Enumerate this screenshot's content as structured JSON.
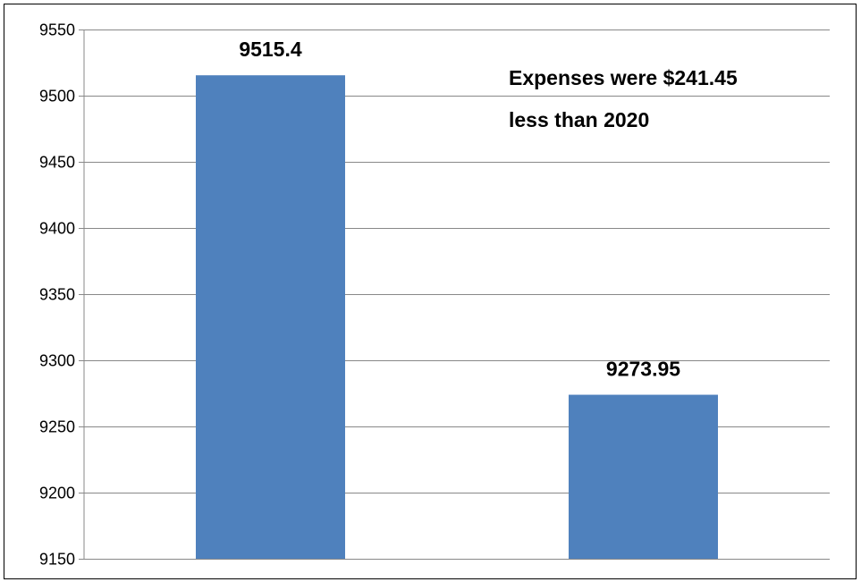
{
  "chart_data": {
    "type": "bar",
    "categories": [
      "",
      ""
    ],
    "values": [
      9515.4,
      9273.95
    ],
    "data_labels": [
      "9515.4",
      "9273.95"
    ],
    "ylim": [
      9150,
      9550
    ],
    "y_ticks": [
      9150,
      9200,
      9250,
      9300,
      9350,
      9400,
      9450,
      9500,
      9550
    ],
    "grid": true,
    "bar_color": "#4F81BD",
    "annotation_lines": [
      "Expenses were $241.45",
      "less than 2020"
    ]
  }
}
